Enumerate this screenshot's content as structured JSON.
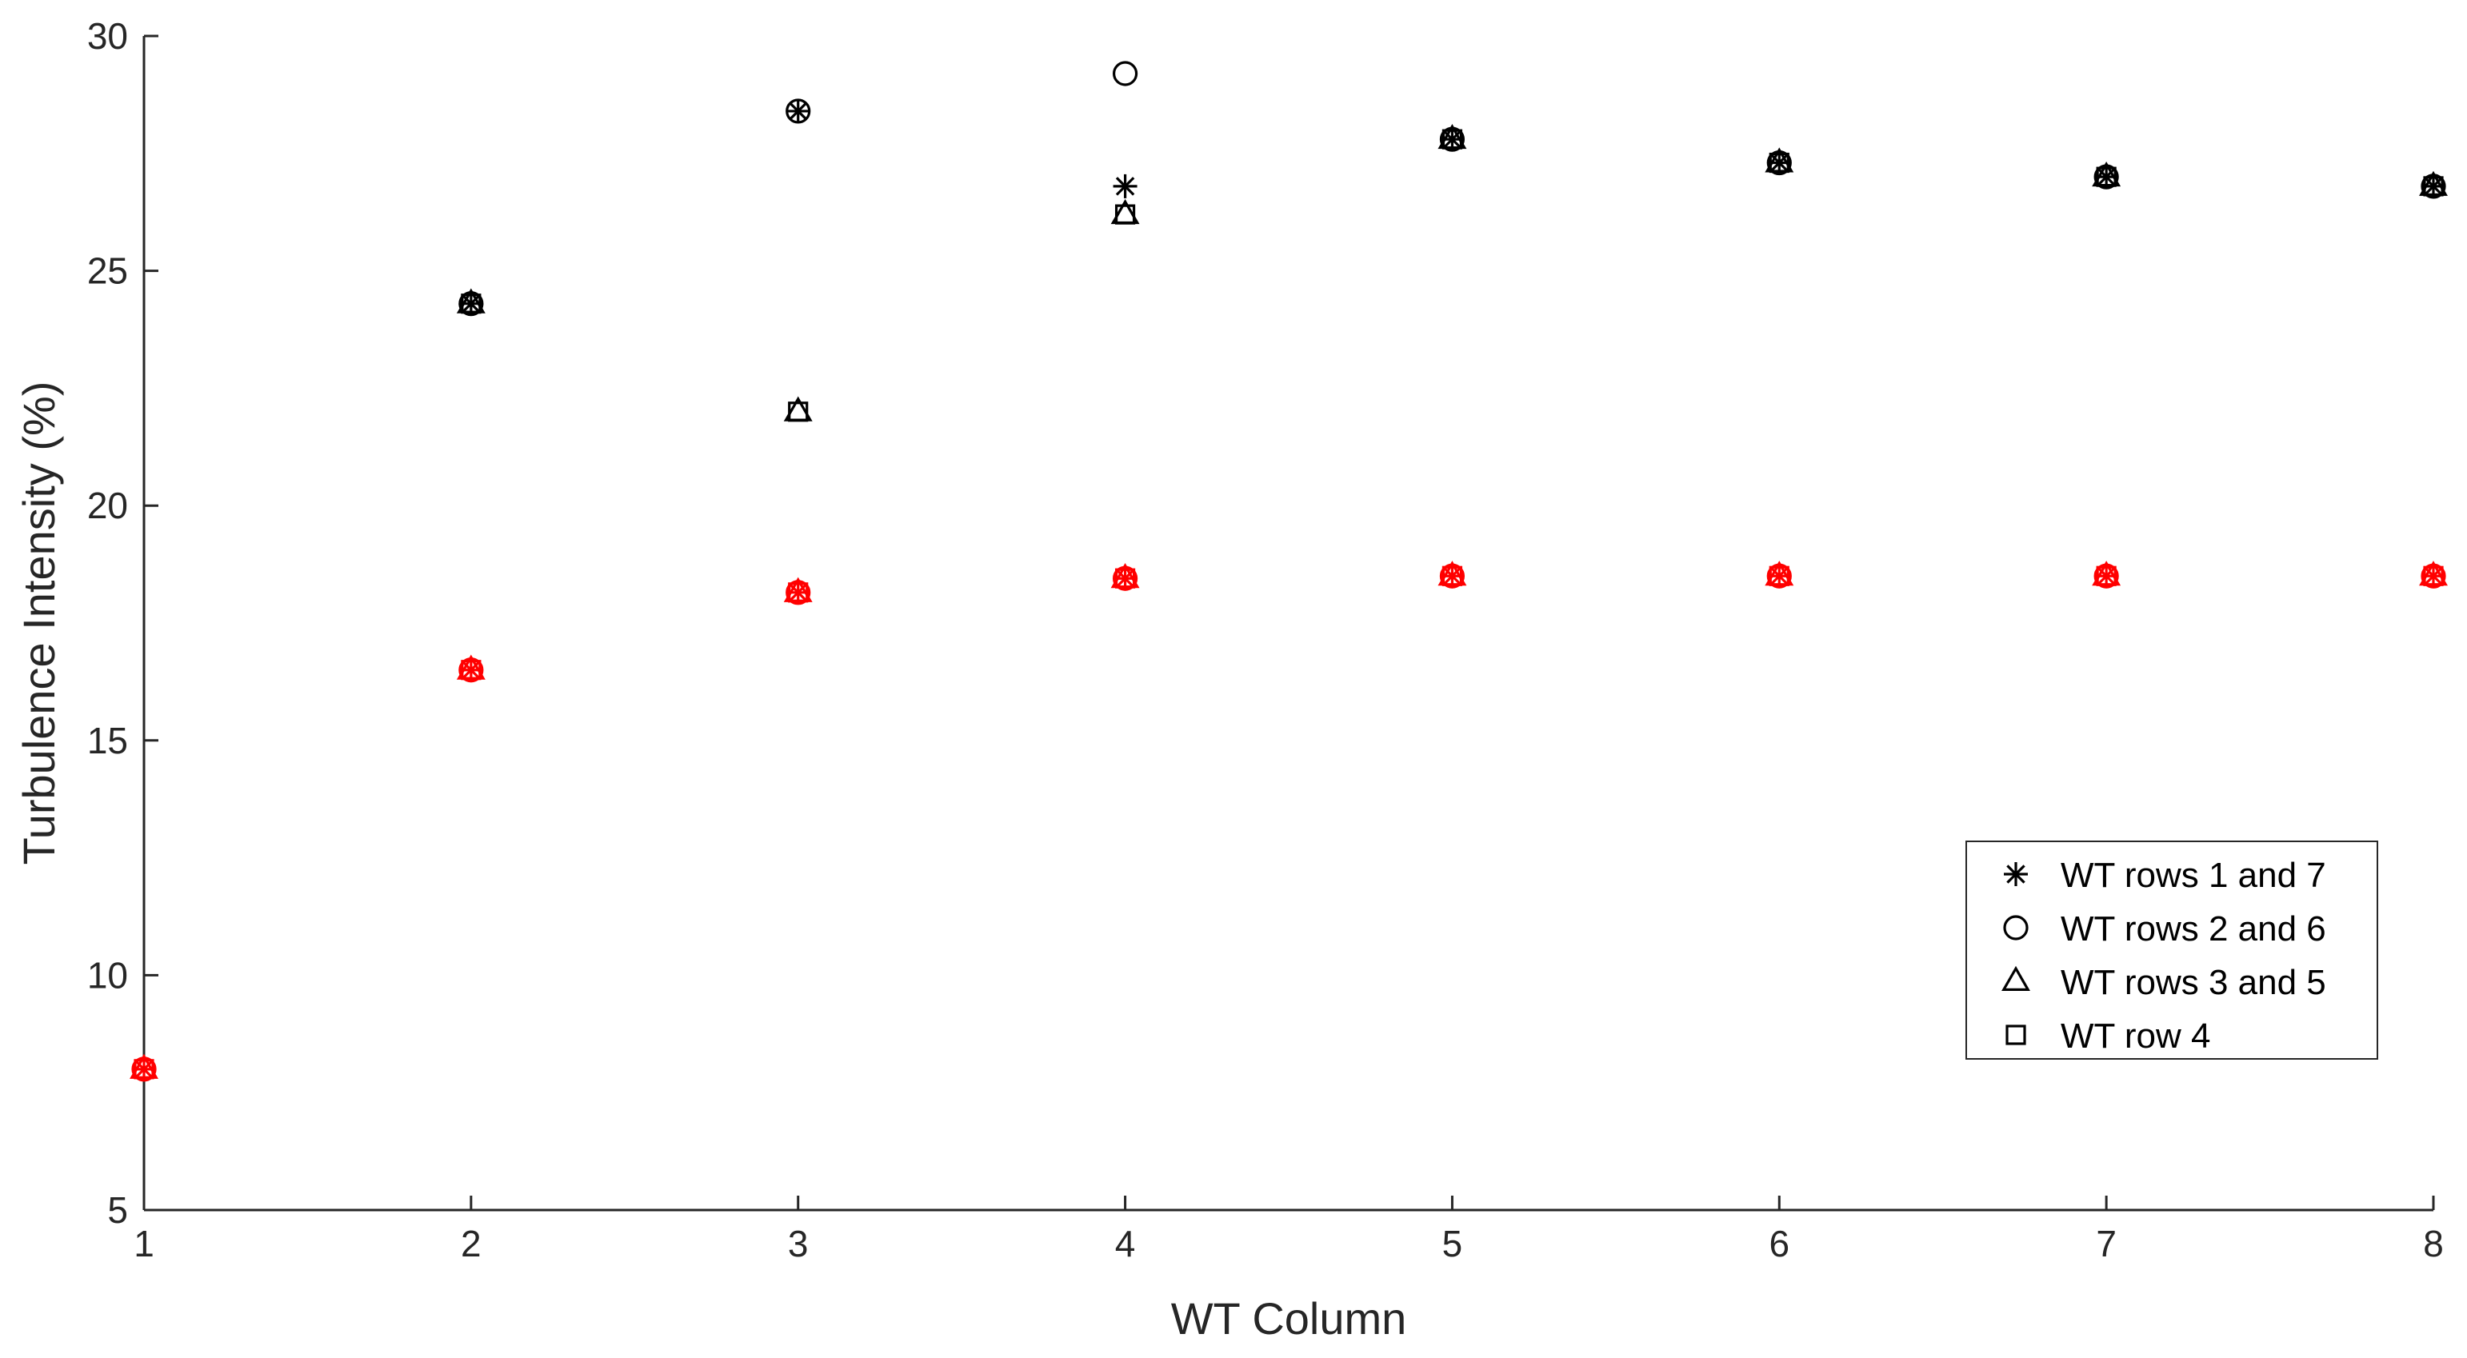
{
  "chart_data": {
    "type": "scatter",
    "title": "",
    "xlabel": "WT Column",
    "ylabel": "Turbulence Intensity (%)",
    "xlim": [
      1,
      8
    ],
    "ylim": [
      5,
      30
    ],
    "xticks": [
      1,
      2,
      3,
      4,
      5,
      6,
      7,
      8
    ],
    "yticks": [
      5,
      10,
      15,
      20,
      25,
      30
    ],
    "grid": false,
    "legend_position": "lower-right",
    "colors": {
      "black": "#000000",
      "red": "#ff0000"
    },
    "series": [
      {
        "name": "WT rows 1 and 7",
        "marker": "asterisk",
        "color": "#000000",
        "x": [
          2,
          3,
          4,
          5,
          6,
          7,
          8
        ],
        "y": [
          24.3,
          28.4,
          26.8,
          27.8,
          27.3,
          27.0,
          26.8
        ]
      },
      {
        "name": "WT rows 2 and 6",
        "marker": "circle",
        "color": "#000000",
        "x": [
          2,
          3,
          4,
          5,
          6,
          7,
          8
        ],
        "y": [
          24.3,
          28.4,
          29.2,
          27.8,
          27.3,
          27.0,
          26.8
        ]
      },
      {
        "name": "WT rows 3 and 5",
        "marker": "triangle",
        "color": "#000000",
        "x": [
          2,
          3,
          4,
          5,
          6,
          7,
          8
        ],
        "y": [
          24.3,
          22.0,
          26.2,
          27.8,
          27.3,
          27.0,
          26.8
        ]
      },
      {
        "name": "WT row 4",
        "marker": "square",
        "color": "#000000",
        "x": [
          2,
          3,
          4,
          5,
          6,
          7,
          8
        ],
        "y": [
          24.3,
          22.0,
          26.2,
          27.8,
          27.3,
          27.0,
          26.8
        ]
      },
      {
        "marker": "asterisk",
        "color": "#ff0000",
        "x": [
          1,
          2,
          3,
          4,
          5,
          6,
          7,
          8
        ],
        "y": [
          8.0,
          16.5,
          18.15,
          18.45,
          18.5,
          18.5,
          18.5,
          18.5
        ]
      },
      {
        "marker": "circle",
        "color": "#ff0000",
        "x": [
          1,
          2,
          3,
          4,
          5,
          6,
          7,
          8
        ],
        "y": [
          8.0,
          16.5,
          18.15,
          18.45,
          18.5,
          18.5,
          18.5,
          18.5
        ]
      },
      {
        "marker": "triangle",
        "color": "#ff0000",
        "x": [
          1,
          2,
          3,
          4,
          5,
          6,
          7,
          8
        ],
        "y": [
          8.0,
          16.5,
          18.15,
          18.45,
          18.5,
          18.5,
          18.5,
          18.5
        ]
      },
      {
        "marker": "square",
        "color": "#ff0000",
        "x": [
          1,
          2,
          3,
          4,
          5,
          6,
          7,
          8
        ],
        "y": [
          8.0,
          16.5,
          18.15,
          18.45,
          18.5,
          18.5,
          18.5,
          18.5
        ]
      }
    ],
    "legend": [
      {
        "marker": "asterisk",
        "label": "WT rows 1 and 7"
      },
      {
        "marker": "circle",
        "label": "WT rows 2 and 6"
      },
      {
        "marker": "triangle",
        "label": "WT rows 3 and 5"
      },
      {
        "marker": "square",
        "label": "WT row 4"
      }
    ]
  }
}
